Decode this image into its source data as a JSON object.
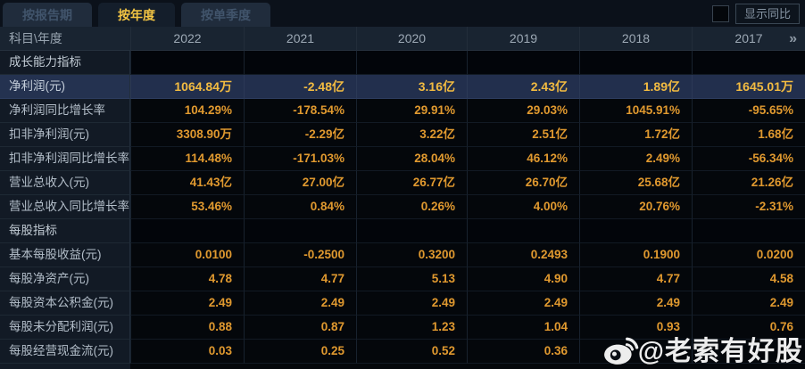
{
  "tabs": [
    {
      "label": "按报告期",
      "active": false
    },
    {
      "label": "按年度",
      "active": true
    },
    {
      "label": "按单季度",
      "active": false
    }
  ],
  "toolbar": {
    "show_yoy_label": "显示同比",
    "checkbox_checked": false
  },
  "table": {
    "corner_label": "科目\\年度",
    "years": [
      "2022",
      "2021",
      "2020",
      "2019",
      "2018",
      "2017"
    ],
    "more_years_icon": "»",
    "rows": [
      {
        "type": "section",
        "label": "成长能力指标"
      },
      {
        "type": "data",
        "label": "净利润(元)",
        "highlighted": true,
        "values": [
          "1064.84万",
          "-2.48亿",
          "3.16亿",
          "2.43亿",
          "1.89亿",
          "1645.01万"
        ]
      },
      {
        "type": "data",
        "label": "净利润同比增长率",
        "values": [
          "104.29%",
          "-178.54%",
          "29.91%",
          "29.03%",
          "1045.91%",
          "-95.65%"
        ]
      },
      {
        "type": "data",
        "label": "扣非净利润(元)",
        "values": [
          "3308.90万",
          "-2.29亿",
          "3.22亿",
          "2.51亿",
          "1.72亿",
          "1.68亿"
        ]
      },
      {
        "type": "data",
        "label": "扣非净利润同比增长率",
        "values": [
          "114.48%",
          "-171.03%",
          "28.04%",
          "46.12%",
          "2.49%",
          "-56.34%"
        ]
      },
      {
        "type": "data",
        "label": "营业总收入(元)",
        "values": [
          "41.43亿",
          "27.00亿",
          "26.77亿",
          "26.70亿",
          "25.68亿",
          "21.26亿"
        ]
      },
      {
        "type": "data",
        "label": "营业总收入同比增长率",
        "values": [
          "53.46%",
          "0.84%",
          "0.26%",
          "4.00%",
          "20.76%",
          "-2.31%"
        ]
      },
      {
        "type": "section",
        "label": "每股指标"
      },
      {
        "type": "data",
        "label": "基本每股收益(元)",
        "values": [
          "0.0100",
          "-0.2500",
          "0.3200",
          "0.2493",
          "0.1900",
          "0.0200"
        ]
      },
      {
        "type": "data",
        "label": "每股净资产(元)",
        "values": [
          "4.78",
          "4.77",
          "5.13",
          "4.90",
          "4.77",
          "4.58"
        ]
      },
      {
        "type": "data",
        "label": "每股资本公积金(元)",
        "values": [
          "2.49",
          "2.49",
          "2.49",
          "2.49",
          "2.49",
          "2.49"
        ]
      },
      {
        "type": "data",
        "label": "每股未分配利润(元)",
        "values": [
          "0.88",
          "0.87",
          "1.23",
          "1.04",
          "0.93",
          "0.76"
        ]
      },
      {
        "type": "data",
        "label": "每股经营现金流(元)",
        "values": [
          "0.03",
          "0.25",
          "0.52",
          "0.36",
          "",
          ""
        ]
      }
    ]
  },
  "watermark": {
    "text": "@老索有好股",
    "icon": "weibo-icon"
  },
  "colors": {
    "value_orange": "#e0992f",
    "highlight_value_gold": "#f2bb41",
    "highlight_row_bg": "#222f4d",
    "active_tab_text": "#f2c443",
    "header_bg": "#192431",
    "label_col_bg": "#121a25",
    "data_cell_bg": "#04070b"
  }
}
